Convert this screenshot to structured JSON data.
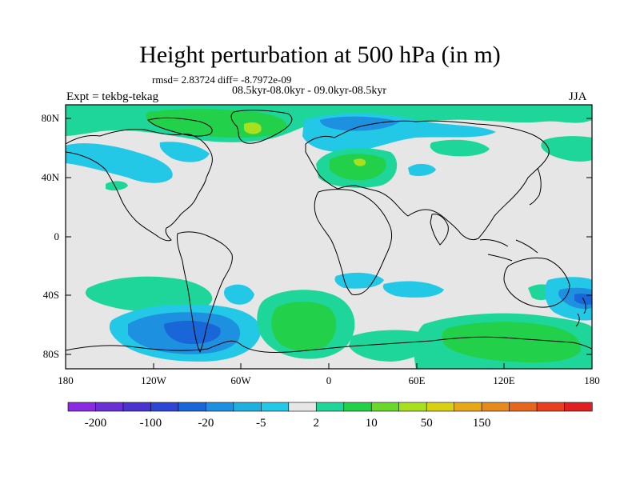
{
  "title": "Height perturbation at 500 hPa (in m)",
  "stats_line": "rmsd= 2.83724  diff= -8.7972e-09",
  "period_line": "08.5kyr-08.0kyr - 09.0kyr-08.5kyr",
  "experiment_line": "Expt = tekbg-tekag",
  "season": "JJA",
  "map": {
    "lon_labels": [
      "180",
      "120W",
      "60W",
      "0",
      "60E",
      "120E",
      "180"
    ],
    "lat_labels": [
      "80N",
      "40N",
      "0",
      "40S",
      "80S"
    ],
    "lat_range": [
      -90,
      90
    ],
    "lon_range": [
      -180,
      180
    ]
  },
  "colorbar": {
    "colors": [
      "#8a2be2",
      "#6b2fd6",
      "#4b33d0",
      "#2d46d6",
      "#1866d8",
      "#1e90e0",
      "#1fb0e0",
      "#22c8e6",
      "#e6e6e6",
      "#1ed69a",
      "#22d04a",
      "#6ad82a",
      "#a8e01e",
      "#d8d010",
      "#e6a818",
      "#e68a1e",
      "#e6661e",
      "#e6401e",
      "#e02020"
    ],
    "labels": [
      "-200",
      "-100",
      "-20",
      "-5",
      "2",
      "10",
      "50",
      "150"
    ]
  },
  "colors": {
    "background_field": "#e6e6e6",
    "neutral": "#e6e6e6",
    "light_blue": "#22c8e6",
    "blue": "#1e90e0",
    "dark_blue": "#1866d8",
    "green_teal": "#1ed69a",
    "green": "#22d04a",
    "yellow_green": "#a8e01e"
  }
}
